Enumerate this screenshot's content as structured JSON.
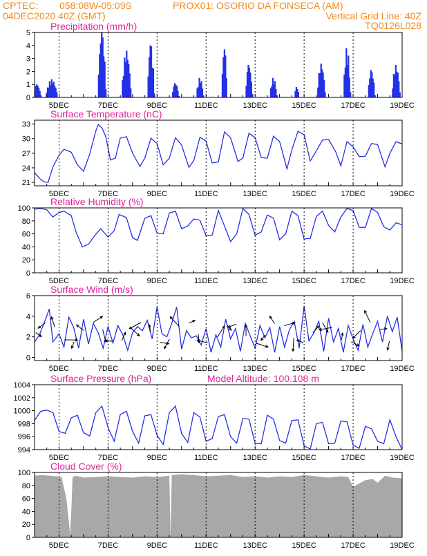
{
  "header": {
    "line1_left": "CPTEC:",
    "line1_coords": "058:08W-05:09S",
    "line1_station": "PROX01: OSORIO DA FONSECA (AM)",
    "line2_left": "04DEC2020 40Z (GMT)",
    "line2_right": "Vertical Grid Line: 40Z",
    "line3_right": "TQ0126L028"
  },
  "colors": {
    "header": "#f08a1c",
    "title": "#e0219a",
    "series": "#2330e6",
    "cloud": "#a8a8a8"
  },
  "chart_data": [
    {
      "type": "bar",
      "title": "Precipitation (mm/h)",
      "x_start_day": 4,
      "x_end_day": 19,
      "x_tick_labels": [
        "5DEC",
        "7DEC",
        "9DEC",
        "11DEC",
        "13DEC",
        "15DEC",
        "17DEC",
        "19DEC"
      ],
      "y_ticks": [
        0,
        1,
        2,
        3,
        4,
        5
      ],
      "ylim": [
        0,
        5
      ],
      "bursts": [
        {
          "day": 4.1,
          "peak": 1.0,
          "width": 0.35
        },
        {
          "day": 4.7,
          "peak": 1.4,
          "width": 0.5
        },
        {
          "day": 6.75,
          "peak": 5.0,
          "width": 0.35
        },
        {
          "day": 7.75,
          "peak": 3.6,
          "width": 0.4
        },
        {
          "day": 8.75,
          "peak": 4.0,
          "width": 0.3
        },
        {
          "day": 9.75,
          "peak": 1.1,
          "width": 0.3
        },
        {
          "day": 10.75,
          "peak": 1.5,
          "width": 0.3
        },
        {
          "day": 11.75,
          "peak": 3.7,
          "width": 0.25
        },
        {
          "day": 12.75,
          "peak": 2.5,
          "width": 0.3
        },
        {
          "day": 13.75,
          "peak": 1.5,
          "width": 0.3
        },
        {
          "day": 14.7,
          "peak": 0.8,
          "width": 0.2
        },
        {
          "day": 15.7,
          "peak": 2.6,
          "width": 0.35
        },
        {
          "day": 16.75,
          "peak": 3.8,
          "width": 0.3
        },
        {
          "day": 17.75,
          "peak": 2.1,
          "width": 0.3
        },
        {
          "day": 18.75,
          "peak": 2.5,
          "width": 0.35
        }
      ]
    },
    {
      "type": "line",
      "title": "Surface Temperature (nC)",
      "x_tick_labels": [
        "5DEC",
        "7DEC",
        "9DEC",
        "11DEC",
        "13DEC",
        "15DEC",
        "17DEC",
        "19DEC"
      ],
      "y_ticks": [
        21,
        24,
        27,
        30,
        33
      ],
      "ylim": [
        20.3,
        33.8
      ],
      "x": [
        4.0,
        4.25,
        4.4,
        4.55,
        4.75,
        5.0,
        5.2,
        5.5,
        5.75,
        6.0,
        6.25,
        6.5,
        6.6,
        6.75,
        6.9,
        7.1,
        7.3,
        7.5,
        7.75,
        8.0,
        8.3,
        8.5,
        8.75,
        9.0,
        9.25,
        9.5,
        9.75,
        10.0,
        10.3,
        10.5,
        10.75,
        11.0,
        11.25,
        11.5,
        11.75,
        12.0,
        12.3,
        12.5,
        12.75,
        13.0,
        13.25,
        13.5,
        13.75,
        14.0,
        14.3,
        14.5,
        14.75,
        15.0,
        15.25,
        15.5,
        15.75,
        16.0,
        16.3,
        16.5,
        16.75,
        17.0,
        17.25,
        17.5,
        17.75,
        18.0,
        18.3,
        18.5,
        18.75,
        19.0
      ],
      "y": [
        23.0,
        21.6,
        21.1,
        21.0,
        24.2,
        26.6,
        27.8,
        27.2,
        24.6,
        23.3,
        26.8,
        31.6,
        32.9,
        32.2,
        30.5,
        25.6,
        26.0,
        30.1,
        30.4,
        27.0,
        24.3,
        26.0,
        30.1,
        29.0,
        24.6,
        26.0,
        30.2,
        28.7,
        24.1,
        25.5,
        30.3,
        29.5,
        25.0,
        25.2,
        31.4,
        30.2,
        25.3,
        26.0,
        31.1,
        30.2,
        26.1,
        26.0,
        30.5,
        29.4,
        23.8,
        27.7,
        31.5,
        30.8,
        25.4,
        27.5,
        29.7,
        29.8,
        27.2,
        24.4,
        29.4,
        28.3,
        26.3,
        26.4,
        29.0,
        28.8,
        24.2,
        27.0,
        29.4,
        28.9
      ]
    },
    {
      "type": "line",
      "title": "Relative Humidity (%)",
      "x_tick_labels": [
        "5DEC",
        "7DEC",
        "9DEC",
        "11DEC",
        "13DEC",
        "15DEC",
        "17DEC",
        "19DEC"
      ],
      "y_ticks": [
        0,
        20,
        40,
        60,
        80,
        100
      ],
      "ylim": [
        0,
        100
      ],
      "x": [
        4.0,
        4.25,
        4.5,
        4.75,
        5.0,
        5.2,
        5.5,
        5.7,
        5.95,
        6.2,
        6.45,
        6.7,
        7.0,
        7.25,
        7.45,
        7.75,
        8.0,
        8.2,
        8.5,
        8.75,
        9.0,
        9.25,
        9.5,
        9.75,
        10.0,
        10.25,
        10.5,
        10.75,
        11.0,
        11.25,
        11.5,
        11.75,
        12.0,
        12.25,
        12.5,
        12.75,
        13.0,
        13.25,
        13.5,
        13.75,
        14.0,
        14.25,
        14.5,
        14.75,
        15.0,
        15.25,
        15.5,
        15.75,
        16.0,
        16.25,
        16.5,
        16.75,
        17.0,
        17.25,
        17.5,
        17.75,
        18.0,
        18.25,
        18.5,
        18.75,
        19.0
      ],
      "y": [
        98,
        99,
        97,
        86,
        93,
        95,
        88,
        62,
        40,
        44,
        57,
        68,
        55,
        65,
        90,
        85,
        54,
        50,
        84,
        88,
        61,
        60,
        92,
        95,
        68,
        72,
        83,
        81,
        57,
        58,
        96,
        72,
        48,
        60,
        99,
        90,
        58,
        63,
        89,
        84,
        51,
        60,
        95,
        88,
        52,
        53,
        87,
        95,
        73,
        63,
        86,
        99,
        96,
        70,
        70,
        99,
        93,
        71,
        66,
        77,
        74
      ]
    },
    {
      "type": "line",
      "title": "Surface Wind (m/s)",
      "x_tick_labels": [
        "5DEC",
        "7DEC",
        "9DEC",
        "11DEC",
        "13DEC",
        "15DEC",
        "17DEC",
        "19DEC"
      ],
      "y_ticks": [
        0,
        2,
        4,
        6
      ],
      "ylim": [
        -0.3,
        6.0
      ],
      "x": [
        4.0,
        4.2,
        4.4,
        4.6,
        4.75,
        5.0,
        5.2,
        5.4,
        5.6,
        5.8,
        6.0,
        6.2,
        6.4,
        6.6,
        6.8,
        7.0,
        7.2,
        7.4,
        7.6,
        7.8,
        8.0,
        8.2,
        8.4,
        8.6,
        8.8,
        9.0,
        9.2,
        9.4,
        9.6,
        9.8,
        10.0,
        10.2,
        10.4,
        10.6,
        10.8,
        11.0,
        11.2,
        11.4,
        11.6,
        11.8,
        12.0,
        12.2,
        12.4,
        12.6,
        12.8,
        13.0,
        13.2,
        13.4,
        13.6,
        13.8,
        14.0,
        14.2,
        14.4,
        14.6,
        14.8,
        15.0,
        15.2,
        15.4,
        15.6,
        15.8,
        16.0,
        16.2,
        16.4,
        16.6,
        16.8,
        17.0,
        17.2,
        17.4,
        17.6,
        17.8,
        18.0,
        18.2,
        18.4,
        18.6,
        18.8,
        19.0
      ],
      "y": [
        1.5,
        2.2,
        3.4,
        4.7,
        1.5,
        2.3,
        1.0,
        3.9,
        2.9,
        0.9,
        3.7,
        1.3,
        3.3,
        2.4,
        0.9,
        3.0,
        1.4,
        3.1,
        2.2,
        0.7,
        2.4,
        3.0,
        2.6,
        3.6,
        1.8,
        4.9,
        2.3,
        2.0,
        3.3,
        4.9,
        0.8,
        2.6,
        1.9,
        2.1,
        1.2,
        2.8,
        0.5,
        2.2,
        1.0,
        3.7,
        1.8,
        2.8,
        0.6,
        3.3,
        2.1,
        0.9,
        3.1,
        1.9,
        2.9,
        0.5,
        3.0,
        1.0,
        2.7,
        3.5,
        0.9,
        5.0,
        1.6,
        2.4,
        3.5,
        0.6,
        3.8,
        1.5,
        2.8,
        0.5,
        3.1,
        1.8,
        0.7,
        3.2,
        1.0,
        2.3,
        3.5,
        1.5,
        4.0,
        2.5,
        3.9,
        0.6
      ]
    },
    {
      "type": "line",
      "title": "Surface Pressure (hPa)",
      "annotation": "Model Altitude: 100.108 m",
      "x_tick_labels": [
        "5DEC",
        "7DEC",
        "9DEC",
        "11DEC",
        "13DEC",
        "15DEC",
        "17DEC",
        "19DEC"
      ],
      "y_ticks": [
        994,
        996,
        998,
        1000,
        1002,
        1004
      ],
      "ylim": [
        994,
        1004
      ],
      "x": [
        4.0,
        4.25,
        4.5,
        4.75,
        5.0,
        5.25,
        5.5,
        5.75,
        6.0,
        6.25,
        6.5,
        6.75,
        7.0,
        7.25,
        7.5,
        7.75,
        8.0,
        8.25,
        8.5,
        8.75,
        9.0,
        9.25,
        9.5,
        9.75,
        10.0,
        10.25,
        10.5,
        10.75,
        11.0,
        11.25,
        11.5,
        11.75,
        12.0,
        12.25,
        12.5,
        12.75,
        13.0,
        13.25,
        13.5,
        13.75,
        14.0,
        14.25,
        14.5,
        14.75,
        15.0,
        15.25,
        15.5,
        15.75,
        16.0,
        16.25,
        16.5,
        16.75,
        17.0,
        17.25,
        17.5,
        17.75,
        18.0,
        18.25,
        18.5,
        18.75,
        19.0
      ],
      "y": [
        998.5,
        999.9,
        1000.1,
        999.7,
        996.8,
        996.5,
        998.9,
        999.3,
        996.6,
        996.1,
        999.7,
        1000.7,
        997.4,
        995.3,
        999.4,
        999.9,
        996.8,
        995.0,
        999.2,
        999.4,
        996.2,
        994.8,
        999.7,
        1000.7,
        996.5,
        995.1,
        999.7,
        999.0,
        995.3,
        995.7,
        999.1,
        999.4,
        996.0,
        995.0,
        998.8,
        998.7,
        995.0,
        994.9,
        999.3,
        998.7,
        995.4,
        995.0,
        998.5,
        998.6,
        994.6,
        994.1,
        998.0,
        998.2,
        994.9,
        995.0,
        998.4,
        998.3,
        994.7,
        994.2,
        997.6,
        997.2,
        995.3,
        994.9,
        998.6,
        996.0,
        994.0
      ]
    },
    {
      "type": "area",
      "title": "Cloud Cover (%)",
      "x_tick_labels": [
        "5DEC",
        "7DEC",
        "9DEC",
        "11DEC",
        "13DEC",
        "15DEC",
        "17DEC",
        "19DEC"
      ],
      "y_ticks": [
        0,
        20,
        40,
        60,
        80,
        100
      ],
      "ylim": [
        0,
        100
      ],
      "x": [
        4.0,
        4.3,
        4.6,
        4.9,
        5.1,
        5.3,
        5.45,
        5.5,
        5.55,
        5.7,
        6.0,
        6.5,
        7.0,
        7.5,
        8.0,
        8.5,
        9.0,
        9.5,
        9.55,
        9.6,
        10.0,
        10.5,
        11.0,
        11.5,
        12.0,
        12.5,
        13.0,
        13.5,
        14.0,
        14.5,
        15.0,
        15.5,
        16.0,
        16.5,
        16.8,
        17.0,
        17.5,
        17.8,
        18.0,
        18.3,
        18.6,
        19.0
      ],
      "y": [
        95,
        96,
        95,
        94,
        93,
        60,
        5,
        40,
        93,
        95,
        92,
        93,
        94,
        93,
        92,
        94,
        93,
        95,
        0,
        96,
        97,
        96,
        94,
        95,
        96,
        93,
        94,
        92,
        94,
        93,
        96,
        94,
        92,
        94,
        93,
        78,
        88,
        90,
        84,
        95,
        92,
        91
      ]
    }
  ]
}
